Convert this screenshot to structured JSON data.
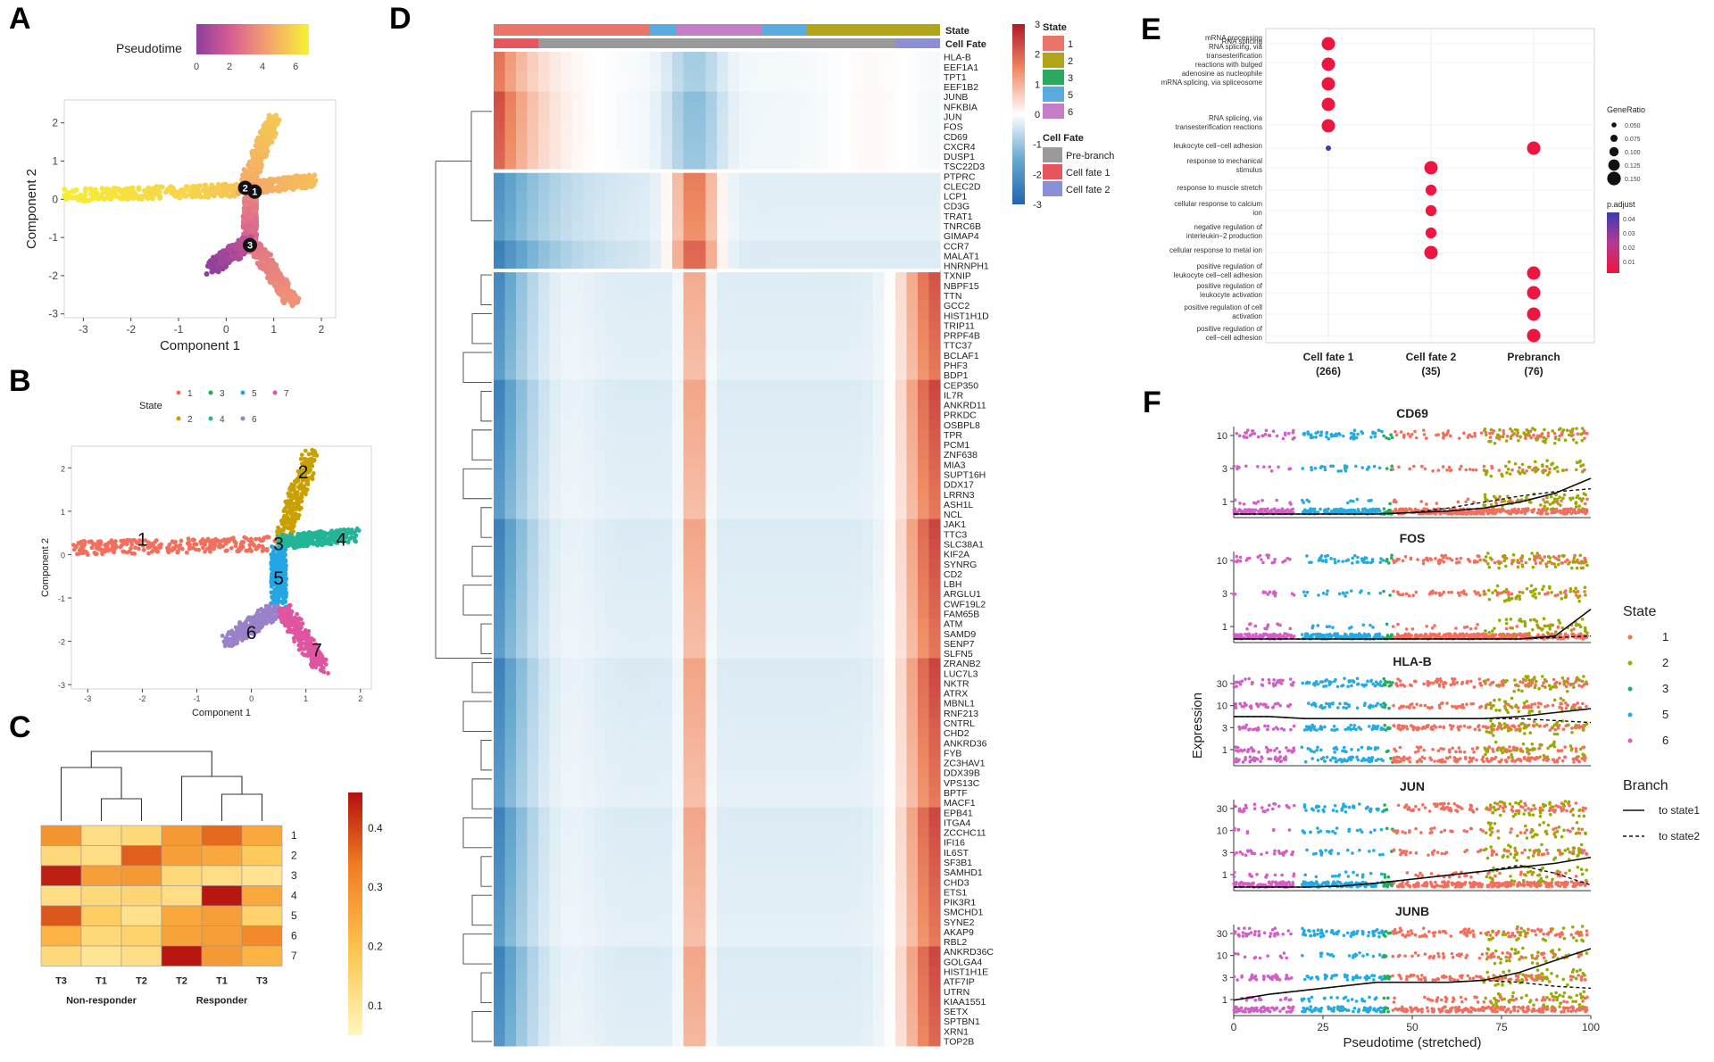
{
  "panels": [
    "A",
    "B",
    "C",
    "D",
    "E",
    "F"
  ],
  "chart_data": [
    {
      "panel": "A",
      "type": "scatter",
      "xlabel": "Component 1",
      "ylabel": "Component 2",
      "xlim": [
        -3.4,
        2.3
      ],
      "ylim": [
        -3.1,
        2.6
      ],
      "xticks": [
        -3,
        -2,
        -1,
        0,
        1,
        2
      ],
      "yticks": [
        -3,
        -2,
        -1,
        0,
        1,
        2
      ],
      "legend": {
        "title": "Pseudotime",
        "ticks": [
          0,
          2,
          4,
          6
        ],
        "range": [
          0,
          6.8
        ],
        "colors": [
          "#8e3f9c",
          "#d65d94",
          "#f39a72",
          "#f6d14e",
          "#f7f22e"
        ]
      },
      "branches": [
        {
          "from": [
            -3.3,
            0.1
          ],
          "to": [
            0.4,
            0.25
          ],
          "t0": 6.5,
          "t1": 4.6
        },
        {
          "from": [
            0.4,
            0.3
          ],
          "to": [
            1.0,
            2.1
          ],
          "t0": 3.9,
          "t1": 4.8
        },
        {
          "from": [
            0.6,
            0.3
          ],
          "to": [
            1.8,
            0.5
          ],
          "t0": 3.9,
          "t1": 4.5
        },
        {
          "from": [
            0.5,
            0.25
          ],
          "to": [
            0.5,
            -1.1
          ],
          "t0": 2.9,
          "t1": 1.8
        },
        {
          "from": [
            0.5,
            -1.1
          ],
          "to": [
            -0.3,
            -1.8
          ],
          "t0": 1.2,
          "t1": 0.0
        },
        {
          "from": [
            0.6,
            -1.2
          ],
          "to": [
            1.4,
            -2.7
          ],
          "t0": 2.4,
          "t1": 3.2
        }
      ],
      "nodes": [
        {
          "label": "2",
          "x": 0.4,
          "y": 0.3
        },
        {
          "label": "1",
          "x": 0.6,
          "y": 0.2
        },
        {
          "label": "3",
          "x": 0.5,
          "y": -1.2
        }
      ]
    },
    {
      "panel": "B",
      "type": "scatter",
      "xlabel": "Component 1",
      "ylabel": "Component 2",
      "xlim": [
        -3.3,
        2.2
      ],
      "ylim": [
        -3.1,
        2.5
      ],
      "xticks": [
        -3,
        -2,
        -1,
        0,
        1,
        2
      ],
      "yticks": [
        -3,
        -2,
        -1,
        0,
        1,
        2
      ],
      "legend": {
        "title": "State",
        "entries": [
          {
            "label": "1",
            "color": "#f26f5e"
          },
          {
            "label": "2",
            "color": "#c8a000"
          },
          {
            "label": "3",
            "color": "#1fae5c"
          },
          {
            "label": "4",
            "color": "#22b597"
          },
          {
            "label": "5",
            "color": "#23a6e3"
          },
          {
            "label": "6",
            "color": "#9a82c9"
          },
          {
            "label": "7",
            "color": "#e0559f"
          }
        ]
      },
      "branches": [
        {
          "state": "1",
          "from": [
            -3.2,
            0.15
          ],
          "to": [
            0.4,
            0.25
          ]
        },
        {
          "state": "2",
          "from": [
            0.55,
            0.35
          ],
          "to": [
            1.1,
            2.3
          ]
        },
        {
          "state": "4",
          "from": [
            0.6,
            0.3
          ],
          "to": [
            1.9,
            0.45
          ]
        },
        {
          "state": "5",
          "from": [
            0.5,
            0.1
          ],
          "to": [
            0.5,
            -1.1
          ]
        },
        {
          "state": "6",
          "from": [
            0.4,
            -1.3
          ],
          "to": [
            -0.4,
            -2.0
          ]
        },
        {
          "state": "7",
          "from": [
            0.6,
            -1.3
          ],
          "to": [
            1.3,
            -2.6
          ]
        }
      ],
      "labels": [
        {
          "text": "1",
          "x": -2.0,
          "y": 0.35
        },
        {
          "text": "2",
          "x": 0.95,
          "y": 1.9
        },
        {
          "text": "3",
          "x": 0.5,
          "y": 0.25
        },
        {
          "text": "4",
          "x": 1.65,
          "y": 0.35
        },
        {
          "text": "5",
          "x": 0.5,
          "y": -0.55
        },
        {
          "text": "6",
          "x": 0.0,
          "y": -1.8
        },
        {
          "text": "7",
          "x": 1.2,
          "y": -2.2
        }
      ]
    },
    {
      "panel": "C",
      "type": "heatmap",
      "columns": [
        "T3",
        "T1",
        "T2",
        "T2",
        "T1",
        "T3"
      ],
      "groups": [
        "Non-responder",
        "Responder"
      ],
      "rows": [
        "1",
        "2",
        "3",
        "4",
        "5",
        "6",
        "7"
      ],
      "values": [
        [
          0.28,
          0.12,
          0.13,
          0.27,
          0.35,
          0.24
        ],
        [
          0.13,
          0.12,
          0.36,
          0.26,
          0.24,
          0.17
        ],
        [
          0.44,
          0.26,
          0.27,
          0.13,
          0.12,
          0.1
        ],
        [
          0.12,
          0.13,
          0.14,
          0.12,
          0.45,
          0.24
        ],
        [
          0.37,
          0.16,
          0.11,
          0.24,
          0.26,
          0.15
        ],
        [
          0.22,
          0.13,
          0.15,
          0.25,
          0.26,
          0.3
        ],
        [
          0.13,
          0.1,
          0.12,
          0.45,
          0.27,
          0.22
        ]
      ],
      "colorbar_ticks": [
        0.1,
        0.2,
        0.3,
        0.4
      ],
      "range": [
        0.05,
        0.46
      ]
    },
    {
      "panel": "D",
      "type": "heatmap",
      "state_legend": {
        "title": "State",
        "entries": [
          {
            "label": "1",
            "color": "#e9756a"
          },
          {
            "label": "2",
            "color": "#b2a519"
          },
          {
            "label": "3",
            "color": "#2aa85f"
          },
          {
            "label": "5",
            "color": "#59abe0"
          },
          {
            "label": "6",
            "color": "#c57dc6"
          }
        ]
      },
      "fate_legend": {
        "title": "Cell Fate",
        "entries": [
          {
            "label": "Pre-branch",
            "color": "#9a9a9a"
          },
          {
            "label": "Cell fate 1",
            "color": "#e8555e"
          },
          {
            "label": "Cell fate 2",
            "color": "#8b8fd6"
          }
        ]
      },
      "annotation_labels": [
        "State",
        "Cell Fate"
      ],
      "colorbar_ticks": [
        3,
        2,
        1,
        0,
        -1,
        -2,
        -3
      ],
      "state_bar": [
        {
          "state": "1",
          "frac": 0.35
        },
        {
          "state": "5",
          "frac": 0.06
        },
        {
          "state": "6",
          "frac": 0.19
        },
        {
          "state": "5",
          "frac": 0.1
        },
        {
          "state": "2",
          "frac": 0.3
        }
      ],
      "fate_bar": [
        {
          "fate": "Cell fate 1",
          "frac": 0.1
        },
        {
          "fate": "Pre-branch",
          "frac": 0.8
        },
        {
          "fate": "Cell fate 2",
          "frac": 0.1
        }
      ],
      "clusters": [
        {
          "name": "cluster1",
          "pattern": "early",
          "genes": [
            "HLA-B",
            "EEF1A1",
            "TPT1",
            "EEF1B2",
            "JUNB",
            "NFKBIA",
            "JUN",
            "FOS",
            "CD69",
            "CXCR4",
            "DUSP1",
            "TSC22D3"
          ]
        },
        {
          "name": "cluster2",
          "pattern": "middle",
          "genes": [
            "PTPRC",
            "CLEC2D",
            "LCP1",
            "CD3G",
            "TRAT1",
            "TNRC6B",
            "GIMAP4",
            "CCR7",
            "MALAT1",
            "HNRNPH1"
          ]
        },
        {
          "name": "cluster3",
          "pattern": "late",
          "genes": [
            "TXNIP",
            "NBPF15",
            "TTN",
            "GCC2",
            "HIST1H1D",
            "TRIP11",
            "PRPF4B",
            "TTC37",
            "BCLAF1",
            "PHF3",
            "BDP1",
            "CEP350",
            "IL7R",
            "ANKRD11",
            "PRKDC",
            "OSBPL8",
            "TPR",
            "PCM1",
            "ZNF638",
            "MIA3",
            "SUPT16H",
            "DDX17",
            "LRRN3",
            "ASH1L",
            "NCL",
            "JAK1",
            "TTC3",
            "SLC38A1",
            "KIF2A",
            "SYNRG",
            "CD2",
            "LBH",
            "ARGLU1",
            "CWF19L2",
            "FAM65B",
            "ATM",
            "SAMD9",
            "SENP7",
            "SLFN5",
            "ZRANB2",
            "LUC7L3",
            "NKTR",
            "ATRX",
            "MBNL1",
            "RNF213",
            "CNTRL",
            "CHD2",
            "ANKRD36",
            "FYB",
            "ZC3HAV1",
            "DDX39B",
            "VPS13C",
            "BPTF",
            "MACF1",
            "EPB41",
            "ITGA4",
            "ZCCHC11",
            "IFI16",
            "IL6ST",
            "SF3B1",
            "SAMHD1",
            "CHD3",
            "ETS1",
            "PIK3R1",
            "SMCHD1",
            "SYNE2",
            "AKAP9",
            "RBL2",
            "ANKRD36C",
            "GOLGA4",
            "HIST1H1E",
            "ATF7IP",
            "UTRN",
            "KIAA1551",
            "SETX",
            "SPTBN1",
            "XRN1",
            "TOP2B"
          ]
        }
      ]
    },
    {
      "panel": "E",
      "type": "scatter",
      "x_categories": [
        {
          "name": "Cell fate 1",
          "count": "(266)"
        },
        {
          "name": "Cell fate 2",
          "count": "(35)"
        },
        {
          "name": "Prebranch",
          "count": "(76)"
        }
      ],
      "terms": [
        {
          "label": [
            "RNA splicing"
          ]
        },
        {
          "label": [
            "mRNA processing",
            "RNA splicing, via",
            "transesterification",
            "reactions with bulged",
            "adenosine as nucleophile",
            "mRNA splicing, via spliceosome"
          ]
        },
        {
          "label": [
            "RNA splicing, via",
            "transesterification reactions"
          ]
        },
        {
          "label": [
            "leukocyte cell−cell adhesion"
          ]
        },
        {
          "label": [
            "response to mechanical",
            "stimulus"
          ]
        },
        {
          "label": [
            "response to muscle stretch"
          ]
        },
        {
          "label": [
            "cellular response to calcium",
            "ion"
          ]
        },
        {
          "label": [
            "negative regulation of",
            "interleukin−2 production"
          ]
        },
        {
          "label": [
            "cellular response to metal ion"
          ]
        },
        {
          "label": [
            "positive regulation of",
            "leukocyte cell−cell adhesion"
          ]
        },
        {
          "label": [
            "positive regulation of",
            "leukocyte activation"
          ]
        },
        {
          "label": [
            "positive regulation of cell",
            "activation"
          ]
        },
        {
          "label": [
            "positive regulation of",
            "cell−cell adhesion"
          ]
        }
      ],
      "points": [
        {
          "x": 0,
          "y": 0.3,
          "ratio": 0.15,
          "p": 0.001
        },
        {
          "x": 0,
          "y": 1.3,
          "ratio": 0.15,
          "p": 0.001
        },
        {
          "x": 0,
          "y": 2.3,
          "ratio": 0.15,
          "p": 0.001
        },
        {
          "x": 0,
          "y": 3.3,
          "ratio": 0.15,
          "p": 0.001
        },
        {
          "x": 0,
          "y": 4.3,
          "ratio": 0.15,
          "p": 0.001
        },
        {
          "x": 0,
          "y": 5.3,
          "ratio": 0.05,
          "p": 0.045
        },
        {
          "x": 1,
          "y": 6.3,
          "ratio": 0.15,
          "p": 0.001
        },
        {
          "x": 1,
          "y": 7.3,
          "ratio": 0.12,
          "p": 0.001
        },
        {
          "x": 1,
          "y": 8.3,
          "ratio": 0.12,
          "p": 0.001
        },
        {
          "x": 1,
          "y": 9.3,
          "ratio": 0.12,
          "p": 0.001
        },
        {
          "x": 1,
          "y": 10.3,
          "ratio": 0.15,
          "p": 0.001
        },
        {
          "x": 2,
          "y": 5.3,
          "ratio": 0.15,
          "p": 0.001
        },
        {
          "x": 2,
          "y": 11.3,
          "ratio": 0.15,
          "p": 0.001
        },
        {
          "x": 2,
          "y": 12.3,
          "ratio": 0.15,
          "p": 0.001
        },
        {
          "x": 2,
          "y": 13.3,
          "ratio": 0.15,
          "p": 0.001
        },
        {
          "x": 2,
          "y": 14.3,
          "ratio": 0.15,
          "p": 0.001
        }
      ],
      "size_legend": {
        "title": "GeneRatio",
        "values": [
          "0.050",
          "0.075",
          "0.100",
          "0.125",
          "0.150"
        ]
      },
      "color_legend": {
        "title": "p.adjust",
        "ticks": [
          "0.04",
          "0.03",
          "0.02",
          "0.01"
        ]
      }
    },
    {
      "panel": "F",
      "type": "scatter",
      "xlabel": "Pseudotime (stretched)",
      "ylabel": "Expression",
      "xticks": [
        0,
        25,
        50,
        75,
        100
      ],
      "xlim": [
        0,
        100
      ],
      "state_legend": {
        "title": "State",
        "entries": [
          {
            "label": "1",
            "color": "#f26f5e"
          },
          {
            "label": "2",
            "color": "#9aab00"
          },
          {
            "label": "3",
            "color": "#1fae5c"
          },
          {
            "label": "5",
            "color": "#25aae2"
          },
          {
            "label": "6",
            "color": "#d25fc6"
          }
        ]
      },
      "branch_legend": {
        "title": "Branch",
        "entries": [
          {
            "label": "to state1",
            "style": "solid"
          },
          {
            "label": "to state2",
            "style": "dashed"
          }
        ]
      },
      "genes": [
        {
          "name": "CD69",
          "yticks": [
            "1",
            "3",
            "10"
          ],
          "curve1": [
            0,
            0,
            0,
            0,
            0,
            0.05,
            0.1,
            0.2,
            0.4,
            0.7,
            1.2
          ],
          "curve2": [
            0,
            0,
            0,
            0,
            0,
            0.05,
            0.2,
            0.4,
            0.6,
            0.75,
            0.85
          ],
          "level": 0.35
        },
        {
          "name": "FOS",
          "yticks": [
            "1",
            "3",
            "10"
          ],
          "curve1": [
            0,
            0,
            0,
            0,
            0,
            0,
            0,
            0,
            0,
            0.1,
            1.0
          ],
          "curve2": [
            0,
            0,
            0,
            0,
            0,
            0,
            0,
            0,
            0,
            0.05,
            0.1
          ],
          "level": 0.3
        },
        {
          "name": "HLA-B",
          "yticks": [
            "1",
            "3",
            "10",
            "30"
          ],
          "curve1": [
            2.3,
            2.3,
            2.2,
            2.2,
            2.2,
            2.2,
            2.2,
            2.2,
            2.3,
            2.5,
            2.7
          ],
          "curve2": [
            2.3,
            2.3,
            2.2,
            2.2,
            2.2,
            2.2,
            2.2,
            2.2,
            2.2,
            2.1,
            2.0
          ],
          "level": 0.9
        },
        {
          "name": "JUN",
          "yticks": [
            "1",
            "3",
            "10",
            "30"
          ],
          "curve1": [
            0,
            0,
            0,
            0.05,
            0.2,
            0.4,
            0.6,
            0.8,
            1.0,
            1.2,
            1.5
          ],
          "curve2": [
            0,
            0,
            0,
            0.05,
            0.2,
            0.4,
            0.6,
            0.8,
            1.1,
            0.7,
            0.1
          ],
          "level": 0.5
        },
        {
          "name": "JUNB",
          "yticks": [
            "1",
            "3",
            "10",
            "30"
          ],
          "curve1": [
            0.6,
            0.9,
            1.1,
            1.3,
            1.5,
            1.5,
            1.5,
            1.6,
            2.0,
            2.6,
            3.2
          ],
          "curve2": [
            0.6,
            0.9,
            1.1,
            1.3,
            1.5,
            1.5,
            1.5,
            1.6,
            1.5,
            1.3,
            1.2
          ],
          "level": 0.7
        }
      ]
    }
  ]
}
